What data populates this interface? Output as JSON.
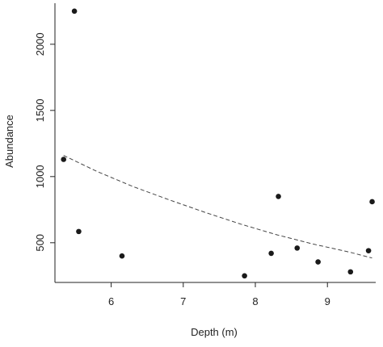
{
  "chart_data": {
    "type": "scatter",
    "title": "",
    "xlabel": "Depth (m)",
    "ylabel": "Abundance",
    "xlim": [
      5.22,
      9.67
    ],
    "ylim": [
      200,
      2310
    ],
    "xticks": [
      6,
      7,
      8,
      9
    ],
    "yticks": [
      500,
      1000,
      1500,
      2000
    ],
    "grid": false,
    "legend": "none",
    "point_color": "#1a1a1a",
    "trend_color": "#444444",
    "series": [
      {
        "points": [
          {
            "x": 5.34,
            "y": 1130
          },
          {
            "x": 5.49,
            "y": 2250
          },
          {
            "x": 5.55,
            "y": 585
          },
          {
            "x": 6.15,
            "y": 400
          },
          {
            "x": 7.85,
            "y": 250
          },
          {
            "x": 8.22,
            "y": 420
          },
          {
            "x": 8.32,
            "y": 850
          },
          {
            "x": 8.58,
            "y": 460
          },
          {
            "x": 8.87,
            "y": 355
          },
          {
            "x": 9.32,
            "y": 280
          },
          {
            "x": 9.57,
            "y": 440
          },
          {
            "x": 9.62,
            "y": 810
          }
        ]
      }
    ],
    "trend_line": {
      "style": "dashed",
      "points": [
        {
          "x": 5.34,
          "y": 1160
        },
        {
          "x": 5.8,
          "y": 1040
        },
        {
          "x": 6.3,
          "y": 925
        },
        {
          "x": 6.8,
          "y": 825
        },
        {
          "x": 7.3,
          "y": 730
        },
        {
          "x": 7.8,
          "y": 640
        },
        {
          "x": 8.3,
          "y": 560
        },
        {
          "x": 8.8,
          "y": 490
        },
        {
          "x": 9.3,
          "y": 430
        },
        {
          "x": 9.62,
          "y": 385
        }
      ]
    }
  }
}
